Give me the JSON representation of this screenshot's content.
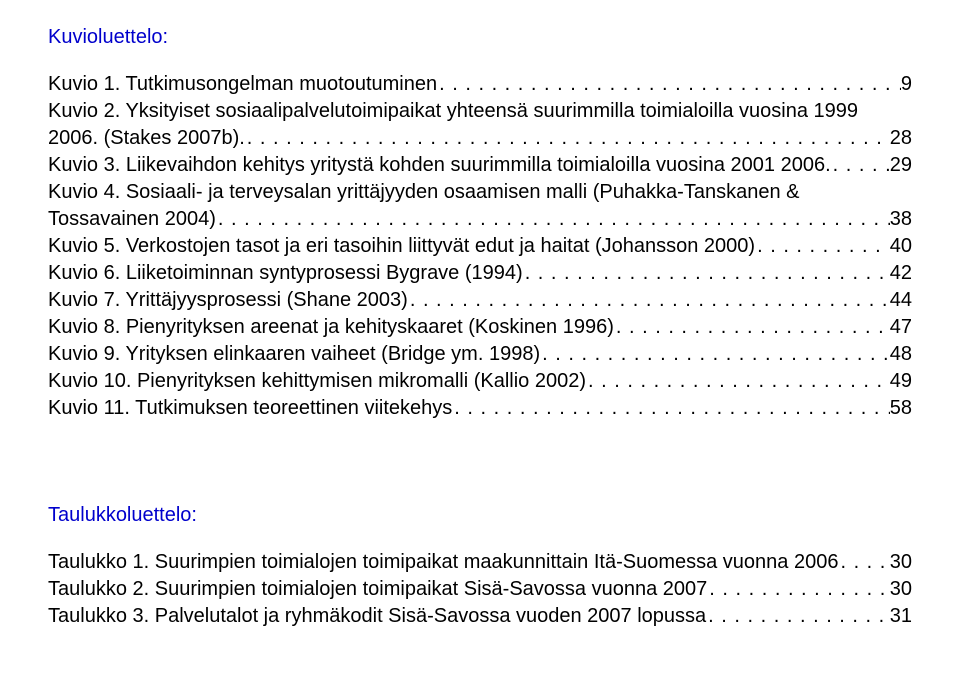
{
  "kuvio": {
    "heading": "Kuvioluettelo:",
    "items": [
      {
        "label": "Kuvio 1. Tutkimusongelman muotoutuminen",
        "page": "9"
      },
      {
        "label": "Kuvio 2. Yksityiset sosiaalipalvelutoimipaikat yhteensä suurimmilla toimialoilla vuosina 1999 2006. (Stakes 2007b).",
        "page": "28"
      },
      {
        "label": "Kuvio 3. Liikevaihdon kehitys yritystä kohden suurimmilla toimialoilla vuosina 2001 2006.",
        "page": "29"
      },
      {
        "label": "Kuvio 4. Sosiaali- ja terveysalan yrittäjyyden osaamisen malli (Puhakka-Tanskanen & Tossavainen 2004)",
        "page": "38"
      },
      {
        "label": "Kuvio 5. Verkostojen tasot ja eri tasoihin liittyvät edut ja haitat (Johansson 2000)",
        "page": "40"
      },
      {
        "label": "Kuvio 6. Liiketoiminnan syntyprosessi Bygrave (1994)",
        "page": "42"
      },
      {
        "label": "Kuvio 7. Yrittäjyysprosessi (Shane 2003)",
        "page": "44"
      },
      {
        "label": "Kuvio 8. Pienyrityksen areenat ja kehityskaaret (Koskinen 1996)",
        "page": "47"
      },
      {
        "label": "Kuvio 9. Yrityksen elinkaaren vaiheet (Bridge ym. 1998)",
        "page": "48"
      },
      {
        "label": "Kuvio 10. Pienyrityksen kehittymisen mikromalli (Kallio 2002)",
        "page": "49"
      },
      {
        "label": "Kuvio 11. Tutkimuksen teoreettinen viitekehys",
        "page": "58"
      }
    ]
  },
  "taulukko": {
    "heading": "Taulukkoluettelo:",
    "items": [
      {
        "label": "Taulukko 1. Suurimpien toimialojen toimipaikat maakunnittain Itä-Suomessa vuonna 2006",
        "page": "30"
      },
      {
        "label": "Taulukko 2. Suurimpien toimialojen toimipaikat Sisä-Savossa vuonna 2007",
        "page": "30"
      },
      {
        "label": "Taulukko 3. Palvelutalot ja ryhmäkodit Sisä-Savossa vuoden 2007 lopussa",
        "page": "31"
      }
    ]
  }
}
